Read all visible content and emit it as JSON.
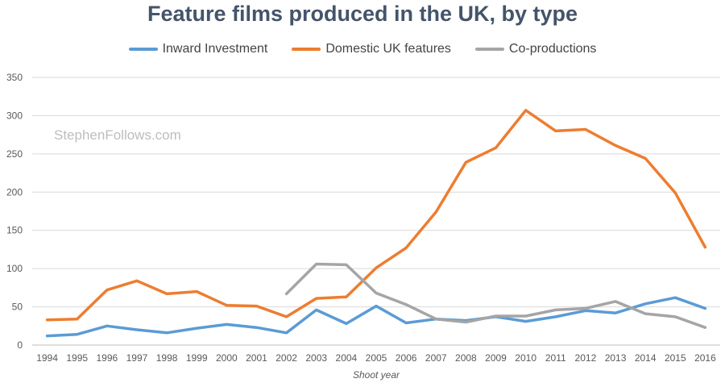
{
  "title": "Feature films produced in the UK, by type",
  "watermark": "StephenFollows.com",
  "chart_data": {
    "type": "line",
    "title": "Feature films produced in the UK, by type",
    "xlabel": "Shoot year",
    "ylabel": "",
    "ylim": [
      0,
      350
    ],
    "yticks": [
      0,
      50,
      100,
      150,
      200,
      250,
      300,
      350
    ],
    "grid": true,
    "legend_position": "top",
    "categories": [
      "1994",
      "1995",
      "1996",
      "1997",
      "1998",
      "1999",
      "2000",
      "2001",
      "2002",
      "2003",
      "2004",
      "2005",
      "2006",
      "2007",
      "2008",
      "2009",
      "2010",
      "2011",
      "2012",
      "2013",
      "2014",
      "2015",
      "2016"
    ],
    "series": [
      {
        "name": "Inward Investment",
        "color": "#5b9bd5",
        "values": [
          12,
          14,
          25,
          20,
          16,
          22,
          27,
          23,
          16,
          46,
          28,
          51,
          29,
          34,
          32,
          37,
          31,
          37,
          45,
          42,
          54,
          62,
          48
        ]
      },
      {
        "name": "Domestic UK features",
        "color": "#ed7d31",
        "values": [
          33,
          34,
          72,
          84,
          67,
          70,
          52,
          51,
          37,
          61,
          63,
          101,
          127,
          174,
          239,
          258,
          307,
          280,
          282,
          261,
          244,
          199,
          128
        ]
      },
      {
        "name": "Co-productions",
        "color": "#a5a5a5",
        "values": [
          null,
          null,
          null,
          null,
          null,
          null,
          null,
          null,
          67,
          106,
          105,
          68,
          53,
          34,
          30,
          38,
          38,
          46,
          48,
          57,
          41,
          37,
          23
        ]
      }
    ]
  }
}
